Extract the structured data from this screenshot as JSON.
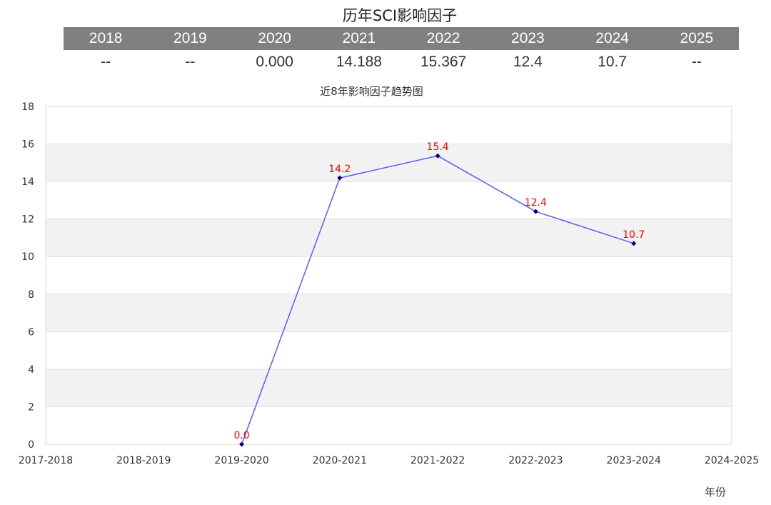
{
  "page_title": "历年SCI影响因子",
  "table": {
    "years": [
      "2018",
      "2019",
      "2020",
      "2021",
      "2022",
      "2023",
      "2024",
      "2025"
    ],
    "values": [
      "--",
      "--",
      "0.000",
      "14.188",
      "15.367",
      "12.4",
      "10.7",
      "--"
    ]
  },
  "colors": {
    "header_bg": "#808080",
    "line": "#5b5bff",
    "marker": "#000080",
    "data_label": "#ff0000",
    "band": "#f2f2f2"
  },
  "chart_data": {
    "type": "line",
    "title": "近8年影响因子趋势图",
    "xlabel": "年份",
    "ylabel": "",
    "categories": [
      "2017-2018",
      "2018-2019",
      "2019-2020",
      "2020-2021",
      "2021-2022",
      "2022-2023",
      "2023-2024",
      "2024-2025"
    ],
    "series": [
      {
        "values": [
          null,
          null,
          0.0,
          14.188,
          15.367,
          12.4,
          10.7,
          null
        ],
        "labels": [
          "",
          "",
          "0.0",
          "14.2",
          "15.4",
          "12.4",
          "10.7",
          ""
        ]
      }
    ],
    "ylim": [
      0,
      18
    ],
    "yticks": [
      0,
      2,
      4,
      6,
      8,
      10,
      12,
      14,
      16,
      18
    ],
    "grid": true
  }
}
